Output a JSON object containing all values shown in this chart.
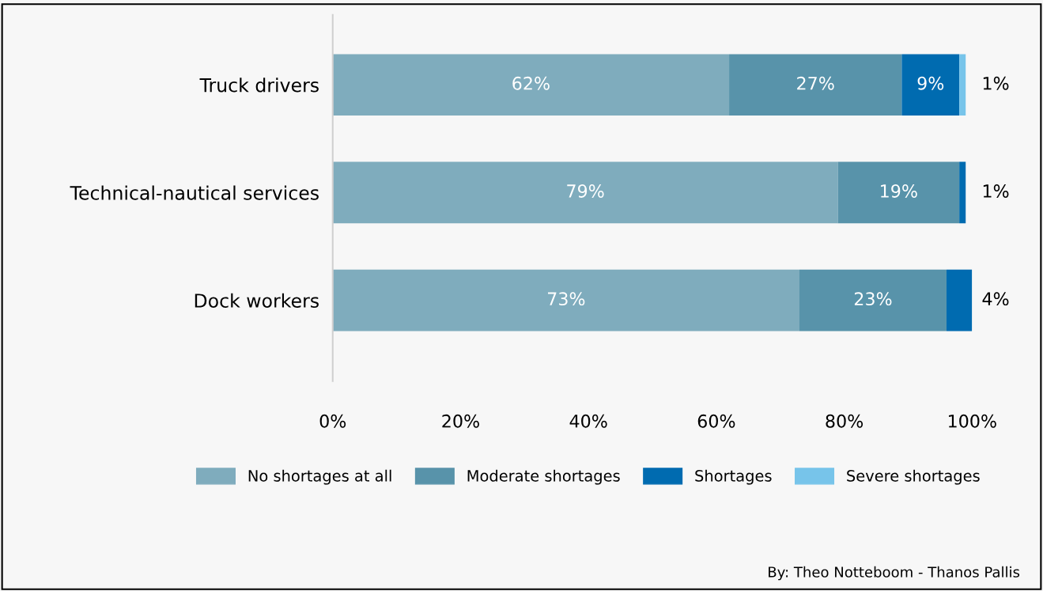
{
  "chart_data": {
    "type": "bar",
    "orientation": "horizontal",
    "stacked": true,
    "categories": [
      "Truck drivers",
      "Technical-nautical services",
      "Dock workers"
    ],
    "series": [
      {
        "name": "No shortages at all",
        "color": "#7facbd",
        "values": [
          62,
          79,
          73
        ],
        "value_labels": [
          "62%",
          "79%",
          "73%"
        ]
      },
      {
        "name": "Moderate shortages",
        "color": "#5893aa",
        "values": [
          27,
          19,
          23
        ],
        "value_labels": [
          "27%",
          "19%",
          "23%"
        ]
      },
      {
        "name": "Shortages",
        "color": "#006bb0",
        "values": [
          9,
          1,
          4
        ],
        "value_labels": [
          "9%",
          "1%",
          "4%"
        ]
      },
      {
        "name": "Severe shortages",
        "color": "#77c4ea",
        "values": [
          1,
          null,
          null
        ],
        "value_labels": [
          "1%",
          null,
          null
        ]
      }
    ],
    "xlim": [
      0,
      100
    ],
    "xticks": [
      {
        "value": 0,
        "label": "0%"
      },
      {
        "value": 20,
        "label": "20%"
      },
      {
        "value": 40,
        "label": "40%"
      },
      {
        "value": 60,
        "label": "60%"
      },
      {
        "value": 80,
        "label": "80%"
      },
      {
        "value": 100,
        "label": "100%"
      }
    ],
    "grid": false,
    "legend": "bottom",
    "annotations": [
      "By: Theo Notteboom - Thanos Pallis"
    ]
  }
}
